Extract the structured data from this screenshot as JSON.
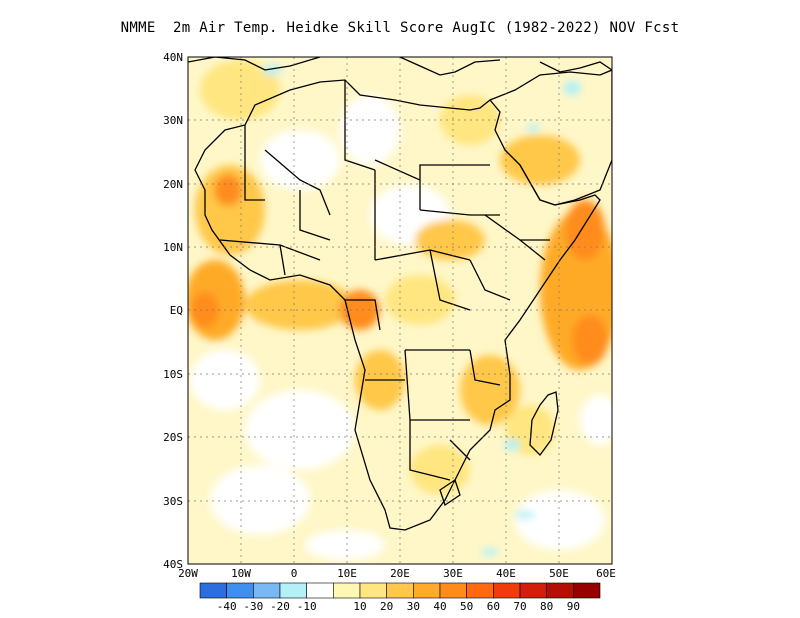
{
  "title": "NMME  2m Air Temp. Heidke Skill Score AugIC (1982-2022) NOV Fcst",
  "map": {
    "lon_range": [
      -20,
      60
    ],
    "lat_range": [
      -40,
      40
    ],
    "lat_labels": [
      "40N",
      "30N",
      "20N",
      "10N",
      "EQ",
      "10S",
      "20S",
      "30S",
      "40S"
    ],
    "lat_values": [
      40,
      30,
      20,
      10,
      0,
      -10,
      -20,
      -30,
      -40
    ],
    "lon_labels": [
      "20W",
      "10W",
      "0",
      "10E",
      "20E",
      "30E",
      "40E",
      "50E",
      "60E"
    ],
    "lon_values": [
      -20,
      -10,
      0,
      10,
      20,
      30,
      40,
      50,
      60
    ],
    "gridlines": true
  },
  "colorbar": {
    "colors": [
      "#2a6ee0",
      "#3d8ff0",
      "#7ab8f5",
      "#b3f0f8",
      "#ffffff",
      "#fff7b3",
      "#ffe680",
      "#ffc84a",
      "#ffaa28",
      "#ff8c1a",
      "#ff6a10",
      "#f03c0a",
      "#d21e0a",
      "#b40f05",
      "#960000"
    ],
    "labels": [
      "-40",
      "-30",
      "-20",
      "-10",
      "10",
      "20",
      "30",
      "40",
      "50",
      "60",
      "70",
      "80",
      "90"
    ]
  }
}
